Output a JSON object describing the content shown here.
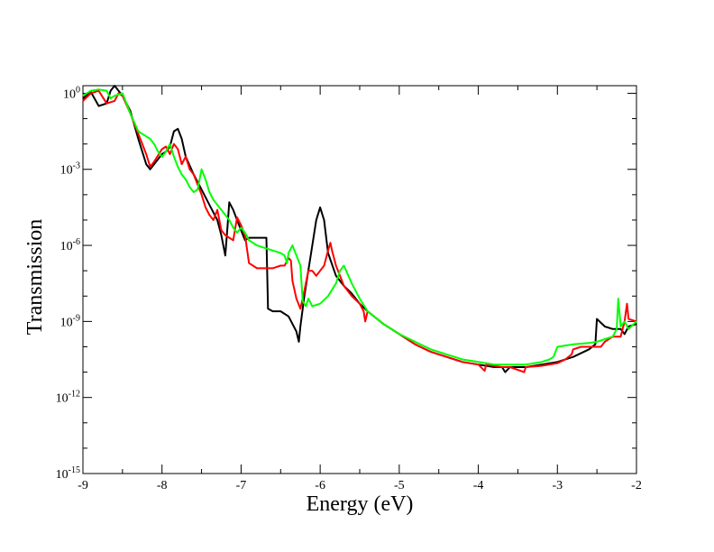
{
  "chart_data": {
    "type": "line",
    "xlabel": "Energy (eV)",
    "ylabel": "Transmission",
    "xlim": [
      -9,
      -2
    ],
    "ylim_log10": [
      -15,
      0.3
    ],
    "y_scale": "log",
    "grid": false,
    "legend": "none",
    "x_ticks": [
      {
        "value": -9,
        "label": "-9"
      },
      {
        "value": -8,
        "label": "-8"
      },
      {
        "value": -7,
        "label": "-7"
      },
      {
        "value": -6,
        "label": "-6"
      },
      {
        "value": -5,
        "label": "-5"
      },
      {
        "value": -4,
        "label": "-4"
      },
      {
        "value": -3,
        "label": "-3"
      },
      {
        "value": -2,
        "label": "-2"
      }
    ],
    "y_ticks": [
      {
        "exp": 0,
        "base": "10",
        "sup": "0"
      },
      {
        "exp": -3,
        "base": "10",
        "sup": "-3"
      },
      {
        "exp": -6,
        "base": "10",
        "sup": "-6"
      },
      {
        "exp": -9,
        "base": "10",
        "sup": "-9"
      },
      {
        "exp": -12,
        "base": "10",
        "sup": "-12"
      },
      {
        "exp": -15,
        "base": "10",
        "sup": "-15"
      }
    ],
    "series": [
      {
        "color": "#000000",
        "log10_points": [
          [
            -9.0,
            -0.2
          ],
          [
            -8.9,
            0.05
          ],
          [
            -8.8,
            -0.5
          ],
          [
            -8.7,
            -0.4
          ],
          [
            -8.65,
            0.1
          ],
          [
            -8.6,
            0.3
          ],
          [
            -8.55,
            0.1
          ],
          [
            -8.5,
            -0.1
          ],
          [
            -8.4,
            -0.7
          ],
          [
            -8.3,
            -1.8
          ],
          [
            -8.2,
            -2.8
          ],
          [
            -8.15,
            -3.0
          ],
          [
            -8.1,
            -2.8
          ],
          [
            -8.0,
            -2.4
          ],
          [
            -7.95,
            -2.3
          ],
          [
            -7.9,
            -2.1
          ],
          [
            -7.85,
            -1.5
          ],
          [
            -7.8,
            -1.4
          ],
          [
            -7.75,
            -1.8
          ],
          [
            -7.7,
            -2.5
          ],
          [
            -7.6,
            -3.2
          ],
          [
            -7.5,
            -3.8
          ],
          [
            -7.4,
            -4.4
          ],
          [
            -7.3,
            -5.0
          ],
          [
            -7.25,
            -5.6
          ],
          [
            -7.2,
            -6.4
          ],
          [
            -7.17,
            -5.2
          ],
          [
            -7.15,
            -4.3
          ],
          [
            -7.1,
            -4.6
          ],
          [
            -7.05,
            -5.0
          ],
          [
            -7.0,
            -5.4
          ],
          [
            -6.95,
            -5.8
          ],
          [
            -6.9,
            -5.7
          ],
          [
            -6.8,
            -5.7
          ],
          [
            -6.7,
            -5.7
          ],
          [
            -6.68,
            -5.7
          ],
          [
            -6.66,
            -8.5
          ],
          [
            -6.6,
            -8.6
          ],
          [
            -6.5,
            -8.6
          ],
          [
            -6.4,
            -8.8
          ],
          [
            -6.3,
            -9.4
          ],
          [
            -6.27,
            -9.8
          ],
          [
            -6.25,
            -9.2
          ],
          [
            -6.2,
            -8.0
          ],
          [
            -6.1,
            -6.0
          ],
          [
            -6.05,
            -5.0
          ],
          [
            -6.0,
            -4.5
          ],
          [
            -5.95,
            -5.0
          ],
          [
            -5.9,
            -6.3
          ],
          [
            -5.8,
            -7.2
          ],
          [
            -5.7,
            -7.6
          ],
          [
            -5.6,
            -7.9
          ],
          [
            -5.5,
            -8.3
          ],
          [
            -5.4,
            -8.6
          ],
          [
            -5.2,
            -9.1
          ],
          [
            -5.0,
            -9.5
          ],
          [
            -4.8,
            -9.9
          ],
          [
            -4.6,
            -10.2
          ],
          [
            -4.4,
            -10.4
          ],
          [
            -4.2,
            -10.6
          ],
          [
            -4.0,
            -10.7
          ],
          [
            -3.8,
            -10.8
          ],
          [
            -3.7,
            -10.8
          ],
          [
            -3.66,
            -11.0
          ],
          [
            -3.6,
            -10.8
          ],
          [
            -3.4,
            -10.8
          ],
          [
            -3.2,
            -10.7
          ],
          [
            -3.0,
            -10.6
          ],
          [
            -2.8,
            -10.4
          ],
          [
            -2.6,
            -10.1
          ],
          [
            -2.52,
            -9.9
          ],
          [
            -2.5,
            -8.9
          ],
          [
            -2.4,
            -9.2
          ],
          [
            -2.3,
            -9.3
          ],
          [
            -2.2,
            -9.3
          ],
          [
            -2.15,
            -9.5
          ],
          [
            -2.1,
            -9.2
          ],
          [
            -2.0,
            -9.1
          ]
        ]
      },
      {
        "color": "#ff0000",
        "log10_points": [
          [
            -9.0,
            -0.3
          ],
          [
            -8.9,
            0.0
          ],
          [
            -8.8,
            0.1
          ],
          [
            -8.7,
            -0.4
          ],
          [
            -8.6,
            -0.3
          ],
          [
            -8.55,
            0.0
          ],
          [
            -8.5,
            -0.1
          ],
          [
            -8.4,
            -0.8
          ],
          [
            -8.3,
            -1.6
          ],
          [
            -8.2,
            -2.4
          ],
          [
            -8.15,
            -2.9
          ],
          [
            -8.1,
            -2.7
          ],
          [
            -8.0,
            -2.2
          ],
          [
            -7.95,
            -2.1
          ],
          [
            -7.9,
            -2.4
          ],
          [
            -7.85,
            -2.0
          ],
          [
            -7.8,
            -2.2
          ],
          [
            -7.75,
            -2.8
          ],
          [
            -7.7,
            -2.5
          ],
          [
            -7.65,
            -3.0
          ],
          [
            -7.6,
            -3.2
          ],
          [
            -7.5,
            -4.0
          ],
          [
            -7.45,
            -4.5
          ],
          [
            -7.4,
            -4.8
          ],
          [
            -7.35,
            -5.0
          ],
          [
            -7.3,
            -4.6
          ],
          [
            -7.25,
            -5.4
          ],
          [
            -7.2,
            -5.6
          ],
          [
            -7.15,
            -5.7
          ],
          [
            -7.1,
            -5.8
          ],
          [
            -7.05,
            -4.9
          ],
          [
            -7.0,
            -5.2
          ],
          [
            -6.95,
            -5.6
          ],
          [
            -6.9,
            -6.7
          ],
          [
            -6.8,
            -6.9
          ],
          [
            -6.7,
            -6.9
          ],
          [
            -6.6,
            -6.9
          ],
          [
            -6.5,
            -6.8
          ],
          [
            -6.45,
            -6.8
          ],
          [
            -6.4,
            -6.5
          ],
          [
            -6.37,
            -6.6
          ],
          [
            -6.35,
            -7.4
          ],
          [
            -6.3,
            -8.1
          ],
          [
            -6.25,
            -8.5
          ],
          [
            -6.2,
            -7.8
          ],
          [
            -6.15,
            -7.0
          ],
          [
            -6.1,
            -7.0
          ],
          [
            -6.05,
            -7.2
          ],
          [
            -6.0,
            -7.0
          ],
          [
            -5.95,
            -6.8
          ],
          [
            -5.9,
            -6.2
          ],
          [
            -5.87,
            -5.9
          ],
          [
            -5.85,
            -6.2
          ],
          [
            -5.8,
            -6.8
          ],
          [
            -5.7,
            -7.6
          ],
          [
            -5.6,
            -8.0
          ],
          [
            -5.5,
            -8.3
          ],
          [
            -5.45,
            -8.6
          ],
          [
            -5.43,
            -9.0
          ],
          [
            -5.4,
            -8.6
          ],
          [
            -5.2,
            -9.1
          ],
          [
            -5.0,
            -9.5
          ],
          [
            -4.8,
            -9.9
          ],
          [
            -4.6,
            -10.2
          ],
          [
            -4.4,
            -10.4
          ],
          [
            -4.2,
            -10.6
          ],
          [
            -4.0,
            -10.7
          ],
          [
            -3.92,
            -10.95
          ],
          [
            -3.9,
            -10.7
          ],
          [
            -3.7,
            -10.8
          ],
          [
            -3.6,
            -10.8
          ],
          [
            -3.42,
            -11.0
          ],
          [
            -3.4,
            -10.8
          ],
          [
            -3.2,
            -10.75
          ],
          [
            -3.0,
            -10.65
          ],
          [
            -2.9,
            -10.5
          ],
          [
            -2.82,
            -10.3
          ],
          [
            -2.8,
            -10.1
          ],
          [
            -2.7,
            -10.0
          ],
          [
            -2.5,
            -10.0
          ],
          [
            -2.45,
            -10.0
          ],
          [
            -2.4,
            -9.8
          ],
          [
            -2.3,
            -9.6
          ],
          [
            -2.2,
            -9.6
          ],
          [
            -2.15,
            -9.0
          ],
          [
            -2.12,
            -8.3
          ],
          [
            -2.1,
            -8.9
          ],
          [
            -2.0,
            -9.0
          ]
        ]
      },
      {
        "color": "#00ff00",
        "log10_points": [
          [
            -9.0,
            -0.1
          ],
          [
            -8.9,
            0.1
          ],
          [
            -8.8,
            0.15
          ],
          [
            -8.7,
            0.1
          ],
          [
            -8.65,
            -0.2
          ],
          [
            -8.6,
            -0.1
          ],
          [
            -8.5,
            0.0
          ],
          [
            -8.4,
            -0.8
          ],
          [
            -8.3,
            -1.5
          ],
          [
            -8.2,
            -1.7
          ],
          [
            -8.15,
            -1.8
          ],
          [
            -8.1,
            -2.0
          ],
          [
            -8.05,
            -2.3
          ],
          [
            -8.0,
            -2.5
          ],
          [
            -7.95,
            -2.3
          ],
          [
            -7.9,
            -2.0
          ],
          [
            -7.85,
            -2.5
          ],
          [
            -7.8,
            -2.9
          ],
          [
            -7.75,
            -3.2
          ],
          [
            -7.7,
            -3.4
          ],
          [
            -7.65,
            -3.7
          ],
          [
            -7.6,
            -3.9
          ],
          [
            -7.55,
            -3.8
          ],
          [
            -7.5,
            -3.0
          ],
          [
            -7.45,
            -3.4
          ],
          [
            -7.4,
            -3.9
          ],
          [
            -7.35,
            -4.2
          ],
          [
            -7.3,
            -4.4
          ],
          [
            -7.25,
            -4.6
          ],
          [
            -7.2,
            -4.8
          ],
          [
            -7.15,
            -5.0
          ],
          [
            -7.1,
            -5.3
          ],
          [
            -7.05,
            -5.5
          ],
          [
            -7.0,
            -5.3
          ],
          [
            -6.95,
            -5.5
          ],
          [
            -6.9,
            -5.8
          ],
          [
            -6.8,
            -6.0
          ],
          [
            -6.7,
            -6.1
          ],
          [
            -6.6,
            -6.2
          ],
          [
            -6.5,
            -6.3
          ],
          [
            -6.45,
            -6.4
          ],
          [
            -6.42,
            -6.7
          ],
          [
            -6.4,
            -6.3
          ],
          [
            -6.35,
            -6.0
          ],
          [
            -6.3,
            -6.4
          ],
          [
            -6.25,
            -6.8
          ],
          [
            -6.22,
            -8.2
          ],
          [
            -6.18,
            -8.4
          ],
          [
            -6.15,
            -8.1
          ],
          [
            -6.1,
            -8.4
          ],
          [
            -6.0,
            -8.3
          ],
          [
            -5.9,
            -8.0
          ],
          [
            -5.8,
            -7.5
          ],
          [
            -5.75,
            -7.0
          ],
          [
            -5.7,
            -6.8
          ],
          [
            -5.6,
            -7.5
          ],
          [
            -5.5,
            -8.1
          ],
          [
            -5.4,
            -8.6
          ],
          [
            -5.2,
            -9.1
          ],
          [
            -5.0,
            -9.5
          ],
          [
            -4.8,
            -9.8
          ],
          [
            -4.6,
            -10.1
          ],
          [
            -4.4,
            -10.3
          ],
          [
            -4.2,
            -10.5
          ],
          [
            -4.0,
            -10.6
          ],
          [
            -3.8,
            -10.7
          ],
          [
            -3.6,
            -10.7
          ],
          [
            -3.4,
            -10.7
          ],
          [
            -3.2,
            -10.6
          ],
          [
            -3.1,
            -10.5
          ],
          [
            -3.05,
            -10.4
          ],
          [
            -3.0,
            -10.0
          ],
          [
            -2.9,
            -9.95
          ],
          [
            -2.8,
            -9.9
          ],
          [
            -2.6,
            -9.85
          ],
          [
            -2.5,
            -9.8
          ],
          [
            -2.4,
            -9.7
          ],
          [
            -2.3,
            -9.6
          ],
          [
            -2.25,
            -9.3
          ],
          [
            -2.23,
            -8.1
          ],
          [
            -2.2,
            -9.2
          ],
          [
            -2.15,
            -9.0
          ],
          [
            -2.1,
            -9.3
          ],
          [
            -2.0,
            -9.0
          ]
        ]
      }
    ]
  }
}
